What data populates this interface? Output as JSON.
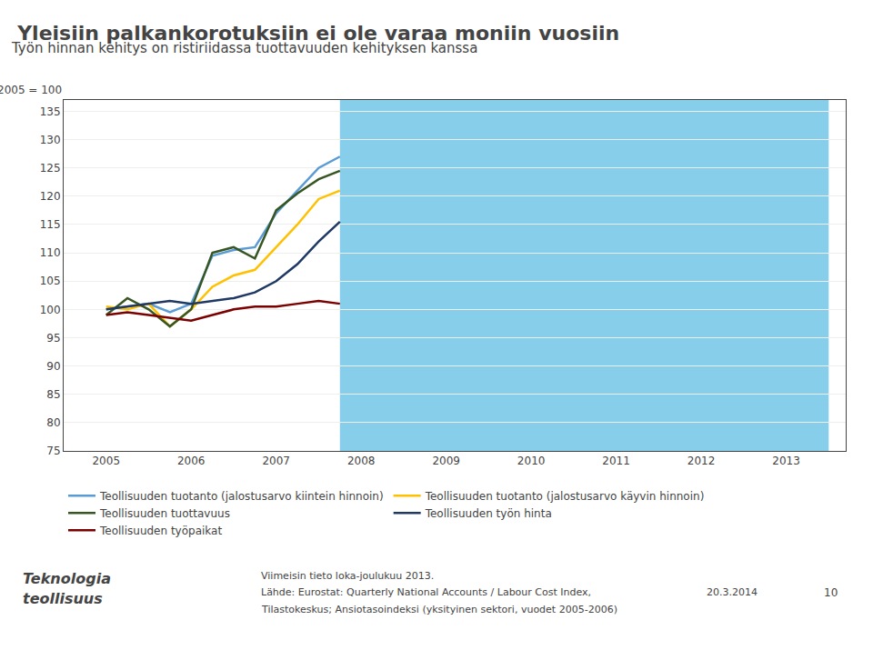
{
  "chart_data": {
    "type": "line",
    "title": "Yleisiin palkankorotuksiin ei ole varaa moniin vuosiin",
    "subtitle": "Työn hinnan kehitys on ristiriidassa tuottavuuden kehityksen kanssa",
    "series": [
      {
        "name": "Teollisuuden tuotanto (jalostusarvo kiintein hinnoin)",
        "color": "#5B9BD5",
        "x": [
          2005.0,
          2005.25,
          2005.5,
          2005.75,
          2006.0,
          2006.25,
          2006.5,
          2006.75,
          2007.0,
          2007.25,
          2007.5,
          2007.75
        ],
        "values": [
          100.0,
          100.5,
          101.0,
          99.5,
          101.0,
          109.5,
          110.5,
          111.0,
          117.0,
          121.0,
          125.0,
          127.0
        ]
      },
      {
        "name": "Teollisuuden tuotanto (jalostusarvo käyvin hinnoin)",
        "color": "#FFC000",
        "x": [
          2005.0,
          2005.25,
          2005.5,
          2005.75,
          2006.0,
          2006.25,
          2006.5,
          2006.75,
          2007.0,
          2007.25,
          2007.5,
          2007.75
        ],
        "values": [
          100.5,
          100.0,
          101.0,
          97.0,
          100.0,
          104.0,
          106.0,
          107.0,
          111.0,
          115.0,
          119.5,
          121.0
        ]
      },
      {
        "name": "Teollisuuden tuottavuus",
        "color": "#375623",
        "x": [
          2005.0,
          2005.25,
          2005.5,
          2005.75,
          2006.0,
          2006.25,
          2006.5,
          2006.75,
          2007.0,
          2007.25,
          2007.5,
          2007.75
        ],
        "values": [
          99.0,
          102.0,
          100.0,
          97.0,
          100.0,
          110.0,
          111.0,
          109.0,
          117.5,
          120.5,
          123.0,
          124.5
        ]
      },
      {
        "name": "Teollisuuden työn hinta",
        "color": "#1F3864",
        "x": [
          2005.0,
          2005.25,
          2005.5,
          2005.75,
          2006.0,
          2006.25,
          2006.5,
          2006.75,
          2007.0,
          2007.25,
          2007.5,
          2007.75
        ],
        "values": [
          100.0,
          100.5,
          101.0,
          101.5,
          101.0,
          101.5,
          102.0,
          103.0,
          105.0,
          108.0,
          112.0,
          115.5
        ]
      },
      {
        "name": "Teollisuuden työpaikat",
        "color": "#7B0000",
        "x": [
          2005.0,
          2005.25,
          2005.5,
          2005.75,
          2006.0,
          2006.25,
          2006.5,
          2006.75,
          2007.0,
          2007.25,
          2007.5,
          2007.75
        ],
        "values": [
          99.0,
          99.5,
          99.0,
          98.5,
          98.0,
          99.0,
          100.0,
          100.5,
          100.5,
          101.0,
          101.5,
          101.0
        ]
      }
    ],
    "xlim": [
      2004.5,
      2013.7
    ],
    "xticks": [
      2005,
      2006,
      2007,
      2008,
      2009,
      2010,
      2011,
      2012,
      2013
    ],
    "ylim": [
      75,
      137
    ],
    "yticks": [
      75,
      80,
      85,
      90,
      95,
      100,
      105,
      110,
      115,
      120,
      125,
      130,
      135
    ],
    "grid": "y",
    "legend": "bottom",
    "shaded_region": {
      "x": [
        2007.75,
        2013.5
      ],
      "color": "#87CEEB"
    },
    "annotations": {
      "y_note": "2005 = 100",
      "footer": [
        "Viimeisin tieto loka-joulukuu 2013.",
        "Lähde: Eurostat: Quarterly National Accounts / Labour Cost Index,",
        "Tilastokeskus; Ansiotasoindeksi (yksityinen sektori, vuodet 2005-2006)"
      ],
      "date": "20.3.2014",
      "page": "10",
      "logo": [
        "Teknologia",
        "teollisuus"
      ]
    }
  }
}
